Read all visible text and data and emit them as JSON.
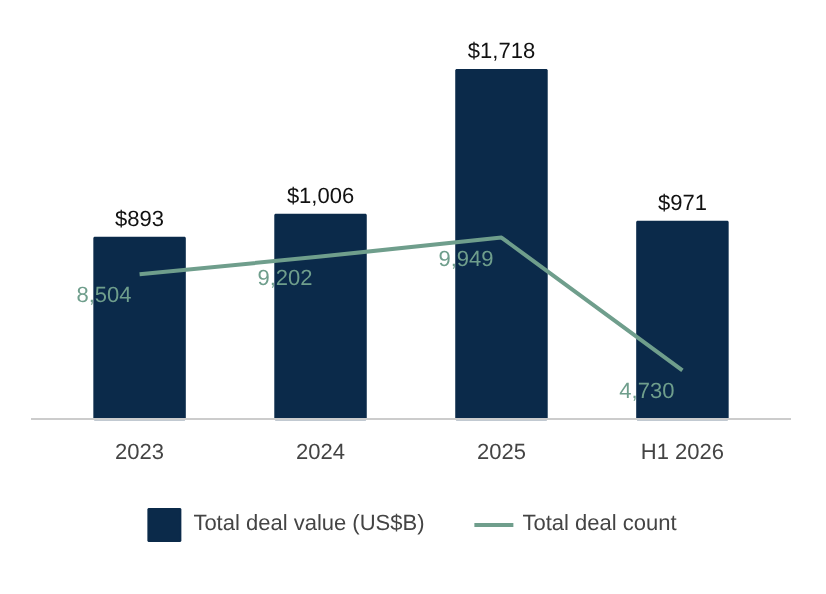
{
  "chart_data": {
    "type": "bar",
    "categories": [
      "2023",
      "2024",
      "2025",
      "H1 2026"
    ],
    "series": [
      {
        "name": "Total deal value (US$B)",
        "color": "#0b2a4a",
        "values": [
          893,
          1006,
          1718,
          971
        ],
        "value_labels": [
          "$893",
          "$1,006",
          "$1,718",
          "$971"
        ]
      },
      {
        "name": "Total deal count",
        "color": "#6f9e8c",
        "type": "line",
        "axis": "y2",
        "values": [
          8504,
          9202,
          9949,
          4730
        ],
        "value_labels": [
          "8,504",
          "9,202",
          "9,949",
          "4,730"
        ]
      }
    ],
    "tick_labels": "x",
    "legend": "bottom"
  }
}
